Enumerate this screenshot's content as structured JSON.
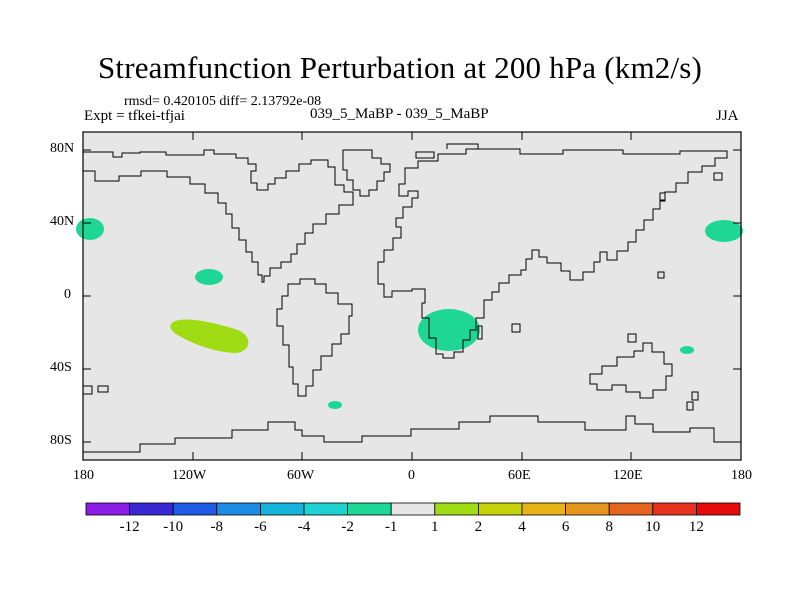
{
  "title": "Streamfunction Perturbation at 200 hPa (km2/s)",
  "stats": "rmsd= 0.420105 diff= 2.13792e-08",
  "experiment": "Expt = tfkei-tfjai",
  "comparison": "039_5_MaBP - 039_5_MaBP",
  "season": "JJA",
  "map": {
    "projection": "cylindrical equidistant",
    "ocean_color": "#e6e6e6",
    "coastline_color": "#000000",
    "x_ticks": [
      "180",
      "120W",
      "60W",
      "0",
      "60E",
      "120E",
      "180"
    ],
    "y_ticks": [
      "80N",
      "40N",
      "0",
      "40S",
      "80S"
    ]
  },
  "colorbar": {
    "labels": [
      "-12",
      "-10",
      "-8",
      "-6",
      "-4",
      "-2",
      "-1",
      "1",
      "2",
      "4",
      "6",
      "8",
      "10",
      "12"
    ],
    "colors": [
      "#8a1ee6",
      "#3c28d2",
      "#1e5ae6",
      "#1e8ce6",
      "#14b4dc",
      "#1ed2d2",
      "#1ed796",
      "#e6e6e6",
      "#a0dc14",
      "#c8d20a",
      "#e6b414",
      "#e6961e",
      "#e6641e",
      "#e6321e",
      "#e60a0a"
    ]
  },
  "chart_data": {
    "type": "heatmap",
    "title": "Streamfunction Perturbation at 200 hPa (km2/s)",
    "xlabel": "",
    "ylabel": "",
    "xlim": [
      -180,
      180
    ],
    "ylim": [
      -90,
      90
    ],
    "contour_levels": [
      -12,
      -10,
      -8,
      -6,
      -4,
      -2,
      -1,
      1,
      2,
      4,
      6,
      8,
      10,
      12
    ],
    "regions": [
      {
        "name": "north-pacific-west-negative",
        "lon": -177,
        "lat": 35,
        "value_range": [
          -2,
          -1
        ]
      },
      {
        "name": "north-pacific-east-negative",
        "lon": 175,
        "lat": 35,
        "value_range": [
          -2,
          -1
        ]
      },
      {
        "name": "east-pacific-negative",
        "lon": -122,
        "lat": 10,
        "value_range": [
          -2,
          -1
        ]
      },
      {
        "name": "south-pacific-positive",
        "lon": -115,
        "lat": -22,
        "value_range": [
          1,
          2
        ]
      },
      {
        "name": "southern-africa-negative",
        "lon": 20,
        "lat": -27,
        "value_range": [
          -2,
          -1
        ]
      },
      {
        "name": "coral-sea-negative",
        "lon": 152,
        "lat": -30,
        "value_range": [
          -2,
          -1
        ]
      },
      {
        "name": "south-atlantic-negative",
        "lon": -40,
        "lat": -60,
        "value_range": [
          -2,
          -1
        ]
      }
    ]
  }
}
